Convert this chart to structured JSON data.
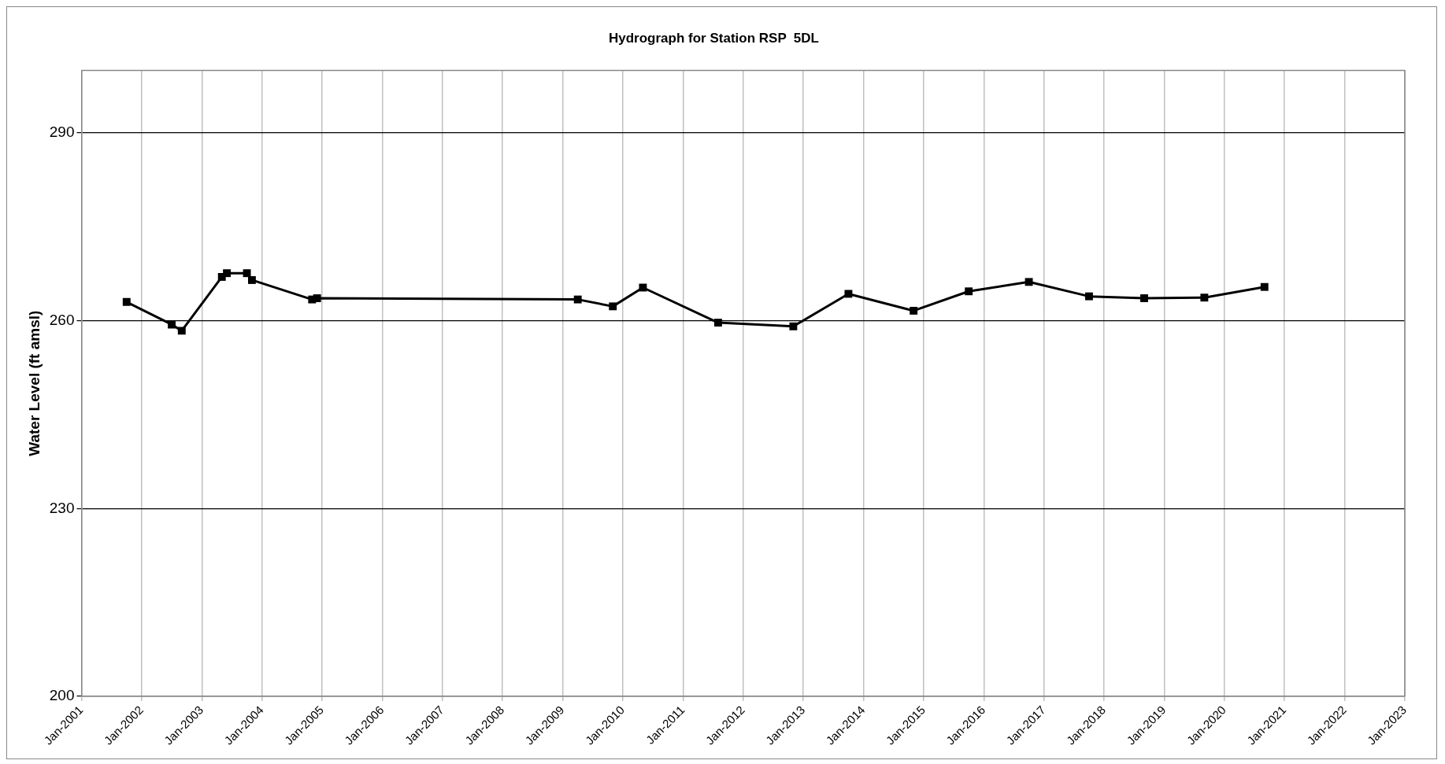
{
  "chart_data": {
    "type": "line",
    "title": "Hydrograph for Station RSP  5DL",
    "ylabel": "Water Level (ft amsl)",
    "x": [
      "2001-10",
      "2002-07",
      "2002-09",
      "2003-05",
      "2003-06",
      "2003-10",
      "2003-11",
      "2004-11",
      "2004-12",
      "2009-04",
      "2009-11",
      "2010-05",
      "2011-08",
      "2012-11",
      "2013-10",
      "2014-11",
      "2015-10",
      "2016-10",
      "2017-10",
      "2018-09",
      "2019-09",
      "2020-09"
    ],
    "series": [
      {
        "color": "#000000",
        "values": [
          263,
          259.4,
          258.4,
          267,
          267.6,
          267.6,
          266.5,
          263.4,
          263.6,
          263.4,
          262.3,
          265.3,
          259.7,
          259.1,
          264.3,
          261.6,
          264.7,
          266.2,
          263.9,
          263.6,
          263.7,
          265.4
        ]
      }
    ],
    "ylim": [
      200,
      300
    ],
    "yticks": [
      200,
      230,
      260,
      290
    ],
    "xlim": [
      "2001-01",
      "2023-01"
    ],
    "xticks": [
      {
        "value": "2001-01",
        "label": "Jan-2001"
      },
      {
        "value": "2002-01",
        "label": "Jan-2002"
      },
      {
        "value": "2003-01",
        "label": "Jan-2003"
      },
      {
        "value": "2004-01",
        "label": "Jan-2004"
      },
      {
        "value": "2005-01",
        "label": "Jan-2005"
      },
      {
        "value": "2006-01",
        "label": "Jan-2006"
      },
      {
        "value": "2007-01",
        "label": "Jan-2007"
      },
      {
        "value": "2008-01",
        "label": "Jan-2008"
      },
      {
        "value": "2009-01",
        "label": "Jan-2009"
      },
      {
        "value": "2010-01",
        "label": "Jan-2010"
      },
      {
        "value": "2011-01",
        "label": "Jan-2011"
      },
      {
        "value": "2012-01",
        "label": "Jan-2012"
      },
      {
        "value": "2013-01",
        "label": "Jan-2013"
      },
      {
        "value": "2014-01",
        "label": "Jan-2014"
      },
      {
        "value": "2015-01",
        "label": "Jan-2015"
      },
      {
        "value": "2016-01",
        "label": "Jan-2016"
      },
      {
        "value": "2017-01",
        "label": "Jan-2017"
      },
      {
        "value": "2018-01",
        "label": "Jan-2018"
      },
      {
        "value": "2019-01",
        "label": "Jan-2019"
      },
      {
        "value": "2020-01",
        "label": "Jan-2020"
      },
      {
        "value": "2021-01",
        "label": "Jan-2021"
      },
      {
        "value": "2022-01",
        "label": "Jan-2022"
      },
      {
        "value": "2023-01",
        "label": "Jan-2023"
      }
    ],
    "grid": true,
    "legend": false,
    "marker": "square",
    "line_style": "solid"
  }
}
